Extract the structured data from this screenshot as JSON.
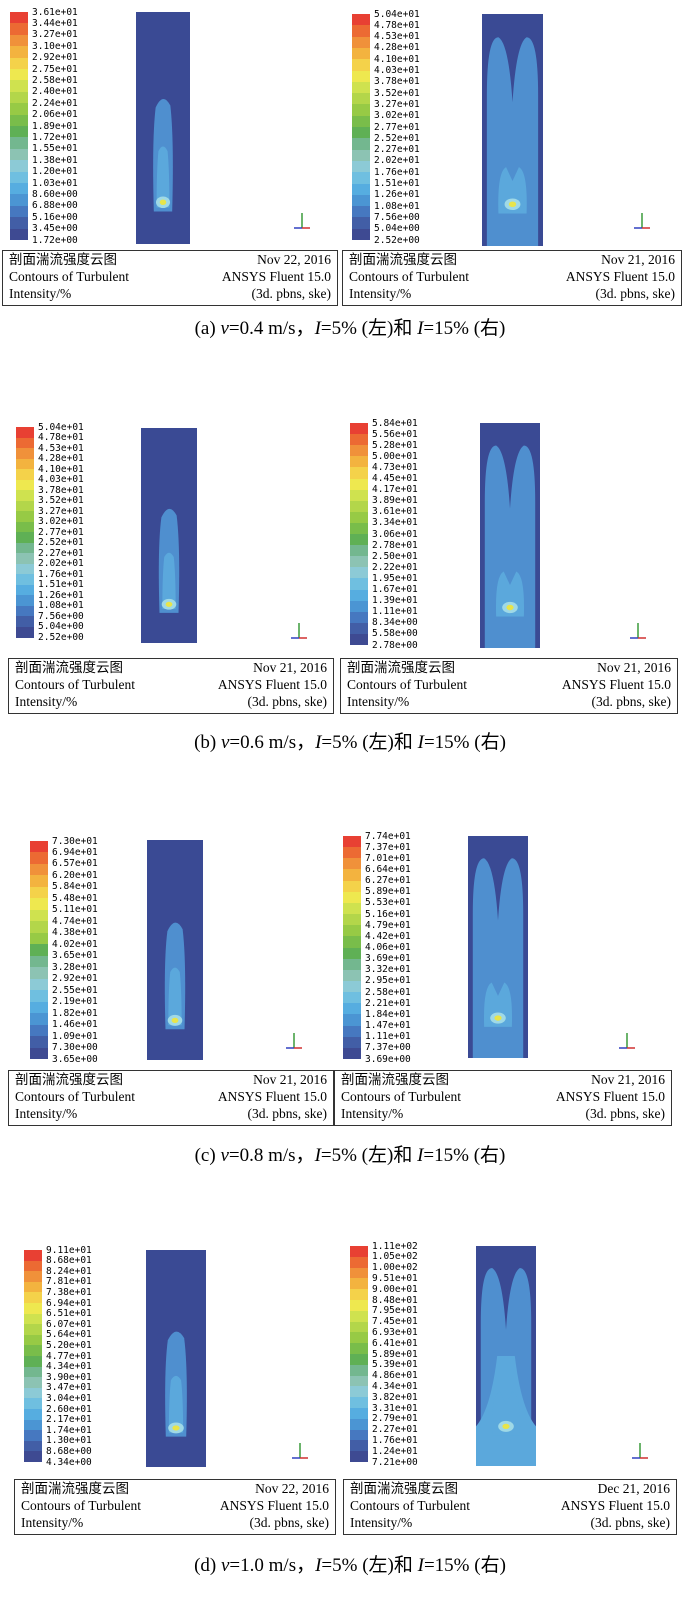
{
  "colors": {
    "scale": [
      "#e84033",
      "#ec6a33",
      "#f0913a",
      "#f3b33f",
      "#f4d24a",
      "#eee84f",
      "#cfe24f",
      "#b3d64a",
      "#97ca45",
      "#79bd4a",
      "#5fb055",
      "#73b78f",
      "#8cc3b3",
      "#8ccad6",
      "#6fbfe0",
      "#56ade0",
      "#4b95d3",
      "#4678c0",
      "#425ea6",
      "#3e4a92"
    ],
    "background_flow": "#3a4a94",
    "plume": "#4f8fcf",
    "plume_inner": "#5ba8dc",
    "core": "#9fd9e6",
    "hot": "#e8e44a"
  },
  "panels": [
    {
      "id": "a-left",
      "ticks": [
        "3.61e+01",
        "3.44e+01",
        "3.27e+01",
        "3.10e+01",
        "2.92e+01",
        "2.75e+01",
        "2.58e+01",
        "2.40e+01",
        "2.24e+01",
        "2.06e+01",
        "1.89e+01",
        "1.72e+01",
        "1.55e+01",
        "1.38e+01",
        "1.20e+01",
        "1.03e+01",
        "8.60e+00",
        "6.88e+00",
        "5.16e+00",
        "3.45e+00",
        "1.72e+00"
      ],
      "info": {
        "title_cn": "剖面湍流强度云图",
        "title_en1": "Contours of Turbulent",
        "title_en2": "Intensity/%",
        "date": "Nov 22, 2016",
        "software": "ANSYS Fluent 15.0",
        "solver": "(3d. pbns, ske)"
      }
    },
    {
      "id": "a-right",
      "ticks": [
        "5.04e+01",
        "4.78e+01",
        "4.53e+01",
        "4.28e+01",
        "4.10e+01",
        "4.03e+01",
        "3.78e+01",
        "3.52e+01",
        "3.27e+01",
        "3.02e+01",
        "2.77e+01",
        "2.52e+01",
        "2.27e+01",
        "2.02e+01",
        "1.76e+01",
        "1.51e+01",
        "1.26e+01",
        "1.08e+01",
        "7.56e+00",
        "5.04e+00",
        "2.52e+00"
      ],
      "info": {
        "title_cn": "剖面湍流强度云图",
        "title_en1": "Contours of Turbulent",
        "title_en2": "Intensity/%",
        "date": "Nov 21, 2016",
        "software": "ANSYS Fluent 15.0",
        "solver": "(3d. pbns, ske)"
      }
    },
    {
      "id": "b-left",
      "ticks": [
        "5.04e+01",
        "4.78e+01",
        "4.53e+01",
        "4.28e+01",
        "4.10e+01",
        "4.03e+01",
        "3.78e+01",
        "3.52e+01",
        "3.27e+01",
        "3.02e+01",
        "2.77e+01",
        "2.52e+01",
        "2.27e+01",
        "2.02e+01",
        "1.76e+01",
        "1.51e+01",
        "1.26e+01",
        "1.08e+01",
        "7.56e+00",
        "5.04e+00",
        "2.52e+00"
      ],
      "info": {
        "title_cn": "剖面湍流强度云图",
        "title_en1": "Contours of Turbulent",
        "title_en2": "Intensity/%",
        "date": "Nov 21, 2016",
        "software": "ANSYS Fluent 15.0",
        "solver": "(3d. pbns, ske)"
      }
    },
    {
      "id": "b-right",
      "ticks": [
        "5.84e+01",
        "5.56e+01",
        "5.28e+01",
        "5.00e+01",
        "4.73e+01",
        "4.45e+01",
        "4.17e+01",
        "3.89e+01",
        "3.61e+01",
        "3.34e+01",
        "3.06e+01",
        "2.78e+01",
        "2.50e+01",
        "2.22e+01",
        "1.95e+01",
        "1.67e+01",
        "1.39e+01",
        "1.11e+01",
        "8.34e+00",
        "5.58e+00",
        "2.78e+00"
      ],
      "info": {
        "title_cn": "剖面湍流强度云图",
        "title_en1": "Contours of Turbulent",
        "title_en2": "Intensity/%",
        "date": "Nov 21, 2016",
        "software": "ANSYS Fluent 15.0",
        "solver": "(3d. pbns, ske)"
      }
    },
    {
      "id": "c-left",
      "ticks": [
        "7.30e+01",
        "6.94e+01",
        "6.57e+01",
        "6.20e+01",
        "5.84e+01",
        "5.48e+01",
        "5.11e+01",
        "4.74e+01",
        "4.38e+01",
        "4.02e+01",
        "3.65e+01",
        "3.28e+01",
        "2.92e+01",
        "2.55e+01",
        "2.19e+01",
        "1.82e+01",
        "1.46e+01",
        "1.09e+01",
        "7.30e+00",
        "3.65e+00"
      ],
      "info": {
        "title_cn": "剖面湍流强度云图",
        "title_en1": "Contours of Turbulent",
        "title_en2": "Intensity/%",
        "date": "Nov 21, 2016",
        "software": "ANSYS Fluent 15.0",
        "solver": "(3d. pbns, ske)"
      }
    },
    {
      "id": "c-right",
      "ticks": [
        "7.74e+01",
        "7.37e+01",
        "7.01e+01",
        "6.64e+01",
        "6.27e+01",
        "5.89e+01",
        "5.53e+01",
        "5.16e+01",
        "4.79e+01",
        "4.42e+01",
        "4.06e+01",
        "3.69e+01",
        "3.32e+01",
        "2.95e+01",
        "2.58e+01",
        "2.21e+01",
        "1.84e+01",
        "1.47e+01",
        "1.11e+01",
        "7.37e+00",
        "3.69e+00"
      ],
      "info": {
        "title_cn": "剖面湍流强度云图",
        "title_en1": "Contours of Turbulent",
        "title_en2": "Intensity/%",
        "date": "Nov 21, 2016",
        "software": "ANSYS Fluent 15.0",
        "solver": "(3d. pbns, ske)"
      }
    },
    {
      "id": "d-left",
      "ticks": [
        "9.11e+01",
        "8.68e+01",
        "8.24e+01",
        "7.81e+01",
        "7.38e+01",
        "6.94e+01",
        "6.51e+01",
        "6.07e+01",
        "5.64e+01",
        "5.20e+01",
        "4.77e+01",
        "4.34e+01",
        "3.90e+01",
        "3.47e+01",
        "3.04e+01",
        "2.60e+01",
        "2.17e+01",
        "1.74e+01",
        "1.30e+01",
        "8.68e+00",
        "4.34e+00"
      ],
      "info": {
        "title_cn": "剖面湍流强度云图",
        "title_en1": "Contours of Turbulent",
        "title_en2": "Intensity/%",
        "date": "Nov 22, 2016",
        "software": "ANSYS Fluent 15.0",
        "solver": "(3d. pbns, ske)"
      }
    },
    {
      "id": "d-right",
      "ticks": [
        "1.11e+02",
        "1.05e+02",
        "1.00e+02",
        "9.51e+01",
        "9.00e+01",
        "8.48e+01",
        "7.95e+01",
        "7.45e+01",
        "6.93e+01",
        "6.41e+01",
        "5.89e+01",
        "5.39e+01",
        "4.86e+01",
        "4.34e+01",
        "3.82e+01",
        "3.31e+01",
        "2.79e+01",
        "2.27e+01",
        "1.76e+01",
        "1.24e+01",
        "7.21e+00"
      ],
      "info": {
        "title_cn": "剖面湍流强度云图",
        "title_en1": "Contours of Turbulent",
        "title_en2": "Intensity/%",
        "date": "Dec 21, 2016",
        "software": "ANSYS Fluent 15.0",
        "solver": "(3d. pbns, ske)"
      }
    }
  ],
  "captions": [
    {
      "prefix": "(a) ",
      "v": "v",
      "vtext": "=0.4 m/s，",
      "i1": "I",
      "t1": "=5% (左)和 ",
      "i2": "I",
      "t2": "=15% (右)"
    },
    {
      "prefix": "(b) ",
      "v": "v",
      "vtext": "=0.6 m/s，",
      "i1": "I",
      "t1": "=5% (左)和 ",
      "i2": "I",
      "t2": "=15% (右)"
    },
    {
      "prefix": "(c) ",
      "v": "v",
      "vtext": "=0.8 m/s，",
      "i1": "I",
      "t1": "=5% (左)和 ",
      "i2": "I",
      "t2": "=15% (右)"
    },
    {
      "prefix": "(d) ",
      "v": "v",
      "vtext": "=1.0 m/s，",
      "i1": "I",
      "t1": "=5% (左)和 ",
      "i2": "I",
      "t2": "=15% (右)"
    }
  ]
}
